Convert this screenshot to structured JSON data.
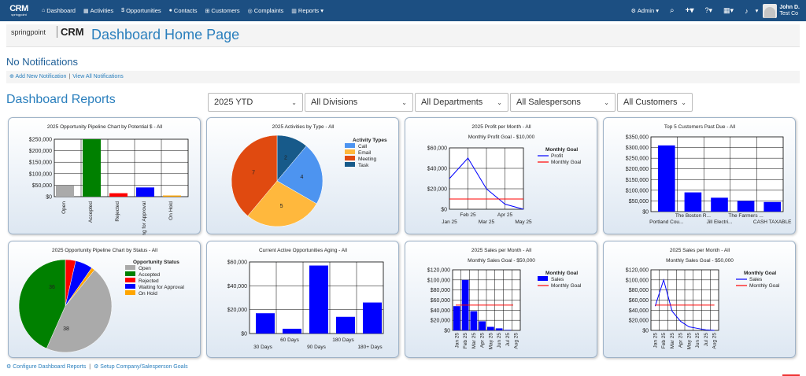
{
  "nav": {
    "logo_text": "CRM",
    "logo_sub": "springpoint",
    "items": [
      {
        "icon": "home-icon",
        "glyph": "⌂",
        "label": "Dashboard"
      },
      {
        "icon": "calendar-icon",
        "glyph": "▦",
        "label": "Activities"
      },
      {
        "icon": "dollar-icon",
        "glyph": "$",
        "label": "Opportunities"
      },
      {
        "icon": "user-icon",
        "glyph": "●",
        "label": "Contacts"
      },
      {
        "icon": "sitemap-icon",
        "glyph": "⊞",
        "label": "Customers"
      },
      {
        "icon": "life-ring-icon",
        "glyph": "◎",
        "label": "Complaints"
      },
      {
        "icon": "bar-chart-icon",
        "glyph": "▥",
        "label": "Reports ▾"
      }
    ],
    "admin_label": "Admin ▾",
    "user_name": "John D.",
    "user_company": "Test Co"
  },
  "brand": {
    "springpoint": "springpoint",
    "crm": "CRM",
    "page_title": "Dashboard Home Page"
  },
  "notifications": {
    "title": "No Notifications",
    "add_link": "Add New Notification",
    "view_link": "View All Notifications"
  },
  "reports": {
    "title": "Dashboard Reports",
    "filters": [
      "2025 YTD",
      "All Divisions",
      "All Departments",
      "All Salespersons",
      "All Customers"
    ]
  },
  "footer": {
    "configure_link": "Configure Dashboard Reports",
    "goals_link": "Setup Company/Salesperson Goals"
  },
  "colors": {
    "nav_bg": "#1c4f82",
    "link": "#2a7fbd",
    "bar_blue": "#0000ff",
    "goal_red": "#ff0000"
  },
  "chart_data": [
    {
      "type": "bar",
      "title": "2025 Opportunity Pipeline Chart by Potential $ - All",
      "categories": [
        "Open",
        "Accepted",
        "Rejected",
        "Waiting for Approval",
        "On Hold"
      ],
      "values": [
        50000,
        250000,
        15000,
        40000,
        5000
      ],
      "colors": [
        "#aaaaaa",
        "#008000",
        "#ff0000",
        "#0000ff",
        "#ffa500"
      ],
      "yticks": [
        "$0",
        "$50,000",
        "$100,000",
        "$150,000",
        "$200,000",
        "$250,000"
      ],
      "ylim": [
        0,
        250000
      ]
    },
    {
      "type": "pie",
      "title": "2025 Activities by Type - All",
      "legend_title": "Activity Types",
      "labels": [
        "Call",
        "Email",
        "Meeting",
        "Task"
      ],
      "values": [
        4,
        5,
        7,
        2
      ],
      "colors": [
        "#4d94f0",
        "#ffb83d",
        "#e04a10",
        "#175a8a"
      ]
    },
    {
      "type": "line",
      "title": "2025 Profit per Month - All",
      "subtitle": "Monthly Profit Goal - $10,000",
      "legend_title": "Monthly Goal",
      "x": [
        "Jan 25",
        "Feb 25",
        "Mar 25",
        "Apr 25",
        "May 25"
      ],
      "series": [
        {
          "name": "Profit",
          "values": [
            30000,
            50000,
            20000,
            5000,
            0
          ],
          "color": "#0000ff"
        },
        {
          "name": "Monthly Goal",
          "values": [
            10000,
            10000,
            10000,
            10000,
            10000
          ],
          "color": "#ff0000"
        }
      ],
      "yticks": [
        "$0",
        "$20,000",
        "$40,000",
        "$60,000"
      ],
      "ylim": [
        0,
        60000
      ]
    },
    {
      "type": "bar",
      "title": "Top 5 Customers Past Due - All",
      "categories": [
        "Portland Cou...",
        "The Boston R...",
        "Jill Electri...",
        "The Farmers ...",
        "CASH TAXABLE"
      ],
      "values": [
        310000,
        90000,
        65000,
        50000,
        45000
      ],
      "yticks": [
        "$0",
        "$50,000",
        "$100,000",
        "$150,000",
        "$200,000",
        "$250,000",
        "$300,000",
        "$350,000"
      ],
      "ylim": [
        0,
        350000
      ]
    },
    {
      "type": "pie",
      "title": "2025 Opportunity Pipeline Chart by Status - All",
      "legend_title": "Opportunity Status",
      "labels": [
        "Open",
        "Accepted",
        "Rejected",
        "Waiting for Approval",
        "On Hold"
      ],
      "values": [
        38,
        36,
        3,
        5,
        1
      ],
      "colors": [
        "#aaaaaa",
        "#008000",
        "#ff0000",
        "#0000ff",
        "#ffa500"
      ]
    },
    {
      "type": "bar",
      "title": "Current Active Opportunities Aging - All",
      "categories": [
        "30 Days",
        "60 Days",
        "90 Days",
        "180 Days",
        "180+ Days"
      ],
      "values": [
        17000,
        4000,
        57000,
        14000,
        26000
      ],
      "yticks": [
        "$0",
        "$20,000",
        "$40,000",
        "$60,000"
      ],
      "ylim": [
        0,
        60000
      ]
    },
    {
      "type": "bar",
      "title": "2025 Sales per Month - All",
      "subtitle": "Monthly Sales Goal - $50,000",
      "legend_title": "Monthly Goal",
      "legend": [
        "Sales",
        "Monthly Goal"
      ],
      "categories": [
        "Jan 25",
        "Feb 25",
        "Mar 25",
        "Apr 25",
        "May 25",
        "Jun 25",
        "Jul 25",
        "Aug 25"
      ],
      "values": [
        48000,
        100000,
        38000,
        18000,
        7000,
        4000,
        1000,
        0
      ],
      "goal": 50000,
      "yticks": [
        "$0",
        "$20,000",
        "$40,000",
        "$60,000",
        "$80,000",
        "$100,000",
        "$120,000"
      ],
      "ylim": [
        0,
        120000
      ]
    },
    {
      "type": "line",
      "title": "2025 Sales per Month - All",
      "subtitle": "Monthly Sales Goal - $50,000",
      "legend_title": "Monthly Goal",
      "x": [
        "Jan 25",
        "Feb 25",
        "Mar 25",
        "Apr 25",
        "May 25",
        "Jun 25",
        "Jul 25",
        "Aug 25"
      ],
      "series": [
        {
          "name": "Sales",
          "values": [
            48000,
            100000,
            38000,
            18000,
            7000,
            4000,
            1000,
            0
          ],
          "color": "#0000ff"
        },
        {
          "name": "Monthly Goal",
          "values": [
            50000,
            50000,
            50000,
            50000,
            50000,
            50000,
            50000,
            50000
          ],
          "color": "#ff0000"
        }
      ],
      "yticks": [
        "$0",
        "$20,000",
        "$40,000",
        "$60,000",
        "$80,000",
        "$100,000",
        "$120,000"
      ],
      "ylim": [
        0,
        120000
      ]
    }
  ]
}
